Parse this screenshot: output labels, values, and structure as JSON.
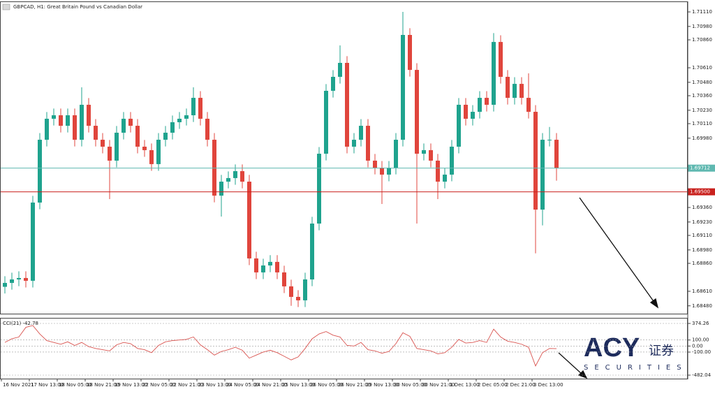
{
  "header": {
    "title": "GBPCAD, H1:  Great Britain Pound vs Canadian Dollar"
  },
  "chart_data": [
    {
      "type": "candlestick",
      "up_color": "#1fa38e",
      "down_color": "#e0453c",
      "open": [
        1.6865,
        1.68685,
        1.68716,
        1.68729,
        1.68704,
        1.69404,
        1.69966,
        1.70154,
        1.70185,
        1.70091,
        1.70185,
        1.69966,
        1.70279,
        1.70091,
        1.69966,
        1.69904,
        1.69779,
        1.70029,
        1.70154,
        1.70091,
        1.69904,
        1.69873,
        1.69748,
        1.69966,
        1.70029,
        1.70123,
        1.70154,
        1.70185,
        1.70341,
        1.70154,
        1.69966,
        1.69466,
        1.69591,
        1.69623,
        1.69685,
        1.69591,
        1.68904,
        1.68779,
        1.68841,
        1.68873,
        1.68779,
        1.68654,
        1.6856,
        1.68529,
        1.68716,
        1.69216,
        1.69841,
        1.70404,
        1.70529,
        1.70654,
        1.69904,
        1.69966,
        1.70091,
        1.69779,
        1.69716,
        1.69654,
        1.69716,
        1.69966,
        1.70904,
        1.70591,
        1.69841,
        1.69873,
        1.69779,
        1.69591,
        1.69654,
        1.69904,
        1.70279,
        1.70154,
        1.70216,
        1.70341,
        1.70279,
        1.70841,
        1.70529,
        1.70341,
        1.70466,
        1.70341,
        1.70216,
        1.69341,
        1.69966,
        1.69966
      ],
      "high": [
        1.68745,
        1.68776,
        1.68789,
        1.68789,
        1.69464,
        1.70026,
        1.70214,
        1.70245,
        1.70245,
        1.70245,
        1.70245,
        1.70435,
        1.70339,
        1.70151,
        1.70026,
        1.69964,
        1.70089,
        1.70214,
        1.70214,
        1.70151,
        1.69964,
        1.69933,
        1.70026,
        1.70089,
        1.70183,
        1.70214,
        1.70245,
        1.70435,
        1.70401,
        1.70214,
        1.70026,
        1.69651,
        1.69683,
        1.69745,
        1.69745,
        1.69651,
        1.68964,
        1.68901,
        1.68933,
        1.68933,
        1.68839,
        1.68714,
        1.6862,
        1.68776,
        1.69276,
        1.69901,
        1.70464,
        1.70589,
        1.7081,
        1.70714,
        1.70026,
        1.70151,
        1.70151,
        1.69839,
        1.69776,
        1.69776,
        1.70026,
        1.7111,
        1.70964,
        1.70651,
        1.69933,
        1.69933,
        1.69839,
        1.69714,
        1.69964,
        1.70339,
        1.70339,
        1.70276,
        1.70401,
        1.70401,
        1.7092,
        1.70901,
        1.70589,
        1.70526,
        1.70526,
        1.7056,
        1.70276,
        1.70026,
        1.7008,
        1.70026
      ],
      "low": [
        1.6859,
        1.68625,
        1.68656,
        1.68644,
        1.68644,
        1.69344,
        1.69906,
        1.70094,
        1.70031,
        1.70031,
        1.69906,
        1.69906,
        1.70031,
        1.69906,
        1.69844,
        1.69435,
        1.69719,
        1.69969,
        1.70031,
        1.69844,
        1.69813,
        1.69688,
        1.69688,
        1.69906,
        1.69969,
        1.70063,
        1.70094,
        1.70125,
        1.70094,
        1.69906,
        1.69406,
        1.69279,
        1.69531,
        1.69563,
        1.69531,
        1.68844,
        1.68719,
        1.68719,
        1.68781,
        1.68719,
        1.68594,
        1.6848,
        1.68469,
        1.68469,
        1.68656,
        1.69156,
        1.69781,
        1.70344,
        1.70469,
        1.69844,
        1.69844,
        1.69906,
        1.69719,
        1.69656,
        1.69391,
        1.69594,
        1.69656,
        1.69906,
        1.70531,
        1.69216,
        1.69781,
        1.69719,
        1.69435,
        1.69531,
        1.69594,
        1.69844,
        1.70094,
        1.70094,
        1.70156,
        1.70219,
        1.70219,
        1.70469,
        1.70281,
        1.70281,
        1.70281,
        1.70156,
        1.6895,
        1.692,
        1.69906,
        1.696
      ],
      "close": [
        1.68685,
        1.68716,
        1.68729,
        1.68704,
        1.69404,
        1.69966,
        1.70154,
        1.70185,
        1.70091,
        1.70185,
        1.69966,
        1.70279,
        1.70091,
        1.69966,
        1.69904,
        1.69779,
        1.70029,
        1.70154,
        1.70091,
        1.69904,
        1.69873,
        1.69748,
        1.69966,
        1.70029,
        1.70123,
        1.70154,
        1.70185,
        1.70341,
        1.70154,
        1.69966,
        1.69466,
        1.69591,
        1.69623,
        1.69685,
        1.69591,
        1.68904,
        1.68779,
        1.68841,
        1.68873,
        1.68779,
        1.68654,
        1.6856,
        1.68529,
        1.68716,
        1.69216,
        1.69841,
        1.70404,
        1.70529,
        1.70654,
        1.69904,
        1.69966,
        1.70091,
        1.69779,
        1.69716,
        1.69654,
        1.69716,
        1.69966,
        1.70904,
        1.70591,
        1.69841,
        1.69873,
        1.69779,
        1.69591,
        1.69654,
        1.69904,
        1.70279,
        1.70154,
        1.70216,
        1.70341,
        1.70279,
        1.70841,
        1.70529,
        1.70341,
        1.70466,
        1.70341,
        1.70216,
        1.69341,
        1.69966,
        1.69966,
        1.69712
      ],
      "ylim": [
        1.68416,
        1.71179
      ],
      "yticks": [
        {
          "value": 1.7111,
          "label": "1.71110"
        },
        {
          "value": 1.7098,
          "label": "1.70980"
        },
        {
          "value": 1.7086,
          "label": "1.70860"
        },
        {
          "value": 1.7061,
          "label": "1.70610"
        },
        {
          "value": 1.7048,
          "label": "1.70480"
        },
        {
          "value": 1.7036,
          "label": "1.70360"
        },
        {
          "value": 1.7023,
          "label": "1.70230"
        },
        {
          "value": 1.7011,
          "label": "1.70110"
        },
        {
          "value": 1.6998,
          "label": "1.69980"
        },
        {
          "value": 1.6936,
          "label": "1.69360"
        },
        {
          "value": 1.6923,
          "label": "1.69230"
        },
        {
          "value": 1.6911,
          "label": "1.69110"
        },
        {
          "value": 1.6898,
          "label": "1.68980"
        },
        {
          "value": 1.6886,
          "label": "1.68860"
        },
        {
          "value": 1.6861,
          "label": "1.68610"
        },
        {
          "value": 1.6848,
          "label": "1.68480"
        }
      ],
      "price_lines": [
        {
          "value": 1.69712,
          "label": "1.69712",
          "color": "#5fb8b0"
        },
        {
          "value": 1.695,
          "label": "1.69500",
          "color": "#c9211e"
        }
      ],
      "xticks": [
        {
          "value": 0,
          "label": "16 Nov 2021"
        },
        {
          "value": 4,
          "label": "17 Nov 13:00"
        },
        {
          "value": 8,
          "label": "18 Nov 05:00"
        },
        {
          "value": 12,
          "label": "18 Nov 21:00"
        },
        {
          "value": 16,
          "label": "19 Nov 13:00"
        },
        {
          "value": 20,
          "label": "22 Nov 05:00"
        },
        {
          "value": 24,
          "label": "22 Nov 21:00"
        },
        {
          "value": 28,
          "label": "23 Nov 13:00"
        },
        {
          "value": 32,
          "label": "24 Nov 05:00"
        },
        {
          "value": 36,
          "label": "24 Nov 21:00"
        },
        {
          "value": 40,
          "label": "25 Nov 13:00"
        },
        {
          "value": 44,
          "label": "26 Nov 05:00"
        },
        {
          "value": 48,
          "label": "26 Nov 21:00"
        },
        {
          "value": 52,
          "label": "29 Nov 13:00"
        },
        {
          "value": 56,
          "label": "30 Nov 05:00"
        },
        {
          "value": 60,
          "label": "30 Nov 21:00"
        },
        {
          "value": 64,
          "label": "1 Dec 13:00"
        },
        {
          "value": 68,
          "label": "2 Dec 05:00"
        },
        {
          "value": 72,
          "label": "2 Dec 21:00"
        },
        {
          "value": 76,
          "label": "3 Dec 13:00"
        }
      ]
    },
    {
      "type": "line",
      "title": "CCI(21) -42.78",
      "color": "#d9534f",
      "values": [
        60,
        120,
        150,
        310,
        340,
        200,
        90,
        60,
        30,
        70,
        10,
        60,
        -10,
        -40,
        -60,
        -80,
        20,
        60,
        40,
        -40,
        -60,
        -110,
        10,
        70,
        90,
        100,
        110,
        150,
        20,
        -60,
        -150,
        -90,
        -60,
        -20,
        -70,
        -200,
        -150,
        -100,
        -70,
        -110,
        -170,
        -230,
        -180,
        -40,
        120,
        200,
        240,
        180,
        150,
        10,
        0,
        60,
        -60,
        -80,
        -120,
        -90,
        40,
        220,
        160,
        -40,
        -60,
        -80,
        -130,
        -110,
        -20,
        110,
        50,
        60,
        90,
        60,
        280,
        150,
        80,
        60,
        30,
        -20,
        -330,
        -110,
        -40,
        -42.78
      ],
      "ylim": [
        -482.04,
        374.26
      ],
      "yticks": [
        374.26,
        {
          "value": 100,
          "label": "100.00"
        },
        {
          "value": 0,
          "label": "0.00"
        },
        {
          "value": -100,
          "label": "-100.00"
        },
        -482.04
      ],
      "grid": true
    }
  ],
  "logo": {
    "brand": "ACY",
    "chinese": "证券",
    "tagline": "SECURITIES"
  }
}
